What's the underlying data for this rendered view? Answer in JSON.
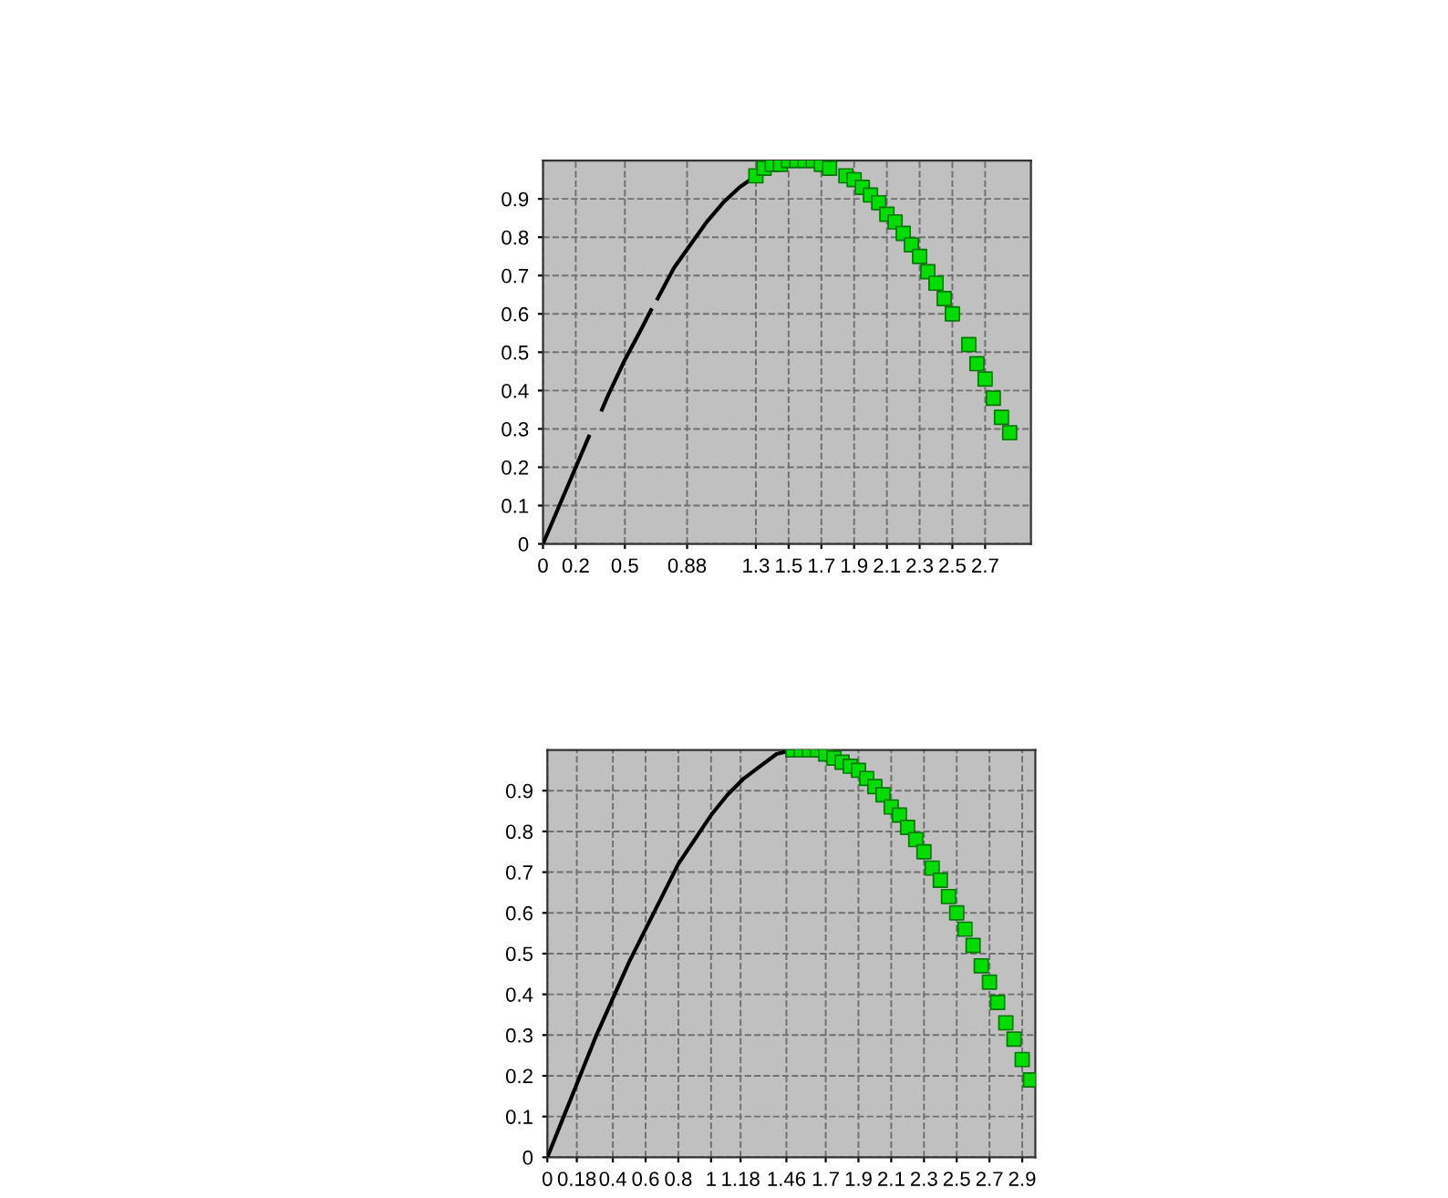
{
  "chart_data": [
    {
      "type": "line",
      "xlim": [
        0,
        2.98
      ],
      "ylim": [
        0,
        1.0
      ],
      "yticks": [
        0,
        0.1,
        0.2,
        0.3,
        0.4,
        0.5,
        0.6,
        0.7,
        0.8,
        0.9
      ],
      "xticks": [
        0,
        0.2,
        0.5,
        0.88,
        1.3,
        1.5,
        1.7,
        1.9,
        2.1,
        2.3,
        2.5,
        2.7
      ],
      "grid": true,
      "series": [
        {
          "color": "#000000",
          "line_style": "solid",
          "marker": "none",
          "x": [
            0,
            0.1,
            0.2,
            0.28,
            0.32,
            0.36,
            0.4,
            0.5,
            0.6,
            0.66,
            0.68,
            0.7,
            0.8,
            0.9,
            1.0,
            1.1,
            1.2,
            1.3
          ],
          "values": [
            0,
            0.1,
            0.2,
            0.28,
            null,
            0.35,
            0.39,
            0.48,
            0.56,
            0.61,
            null,
            0.64,
            0.72,
            0.78,
            0.84,
            0.89,
            0.93,
            0.96
          ]
        },
        {
          "type": "scatter",
          "color": "#00dd00",
          "marker": "square",
          "x": [
            1.3,
            1.35,
            1.4,
            1.45,
            1.5,
            1.55,
            1.6,
            1.65,
            1.7,
            1.75,
            1.85,
            1.9,
            1.95,
            2.0,
            2.05,
            2.1,
            2.15,
            2.2,
            2.25,
            2.3,
            2.35,
            2.4,
            2.45,
            2.5,
            2.6,
            2.65,
            2.7,
            2.75,
            2.8,
            2.85
          ],
          "values": [
            0.96,
            0.98,
            0.99,
            0.99,
            1.0,
            1.0,
            1.0,
            1.0,
            0.99,
            0.98,
            0.96,
            0.95,
            0.93,
            0.91,
            0.89,
            0.86,
            0.84,
            0.81,
            0.78,
            0.75,
            0.71,
            0.68,
            0.64,
            0.6,
            0.52,
            0.47,
            0.43,
            0.38,
            0.33,
            0.29
          ]
        }
      ]
    },
    {
      "type": "line",
      "xlim": [
        0,
        2.98
      ],
      "ylim": [
        0,
        1.0
      ],
      "yticks": [
        0,
        0.1,
        0.2,
        0.3,
        0.4,
        0.5,
        0.6,
        0.7,
        0.8,
        0.9
      ],
      "xticks": [
        0,
        0.18,
        0.4,
        0.6,
        0.8,
        1,
        1.18,
        1.46,
        1.7,
        1.9,
        2.1,
        2.3,
        2.5,
        2.7,
        2.9
      ],
      "grid": true,
      "series": [
        {
          "color": "#000000",
          "line_style": "solid",
          "marker": "none",
          "x": [
            0,
            0.1,
            0.2,
            0.3,
            0.4,
            0.5,
            0.6,
            0.7,
            0.8,
            0.9,
            1.0,
            1.1,
            1.2,
            1.3,
            1.4,
            1.5
          ],
          "values": [
            0,
            0.1,
            0.2,
            0.3,
            0.39,
            0.48,
            0.56,
            0.64,
            0.72,
            0.78,
            0.84,
            0.89,
            0.93,
            0.96,
            0.99,
            1.0
          ]
        },
        {
          "type": "scatter",
          "color": "#00dd00",
          "marker": "square",
          "x": [
            1.5,
            1.55,
            1.6,
            1.65,
            1.7,
            1.75,
            1.8,
            1.85,
            1.9,
            1.95,
            2.0,
            2.05,
            2.1,
            2.15,
            2.2,
            2.25,
            2.3,
            2.35,
            2.4,
            2.45,
            2.5,
            2.55,
            2.6,
            2.65,
            2.7,
            2.75,
            2.8,
            2.85,
            2.9,
            2.95
          ],
          "values": [
            1.0,
            1.0,
            1.0,
            1.0,
            0.99,
            0.98,
            0.97,
            0.96,
            0.95,
            0.93,
            0.91,
            0.89,
            0.86,
            0.84,
            0.81,
            0.78,
            0.75,
            0.71,
            0.68,
            0.64,
            0.6,
            0.56,
            0.52,
            0.47,
            0.43,
            0.38,
            0.33,
            0.29,
            0.24,
            0.19
          ]
        }
      ]
    }
  ]
}
